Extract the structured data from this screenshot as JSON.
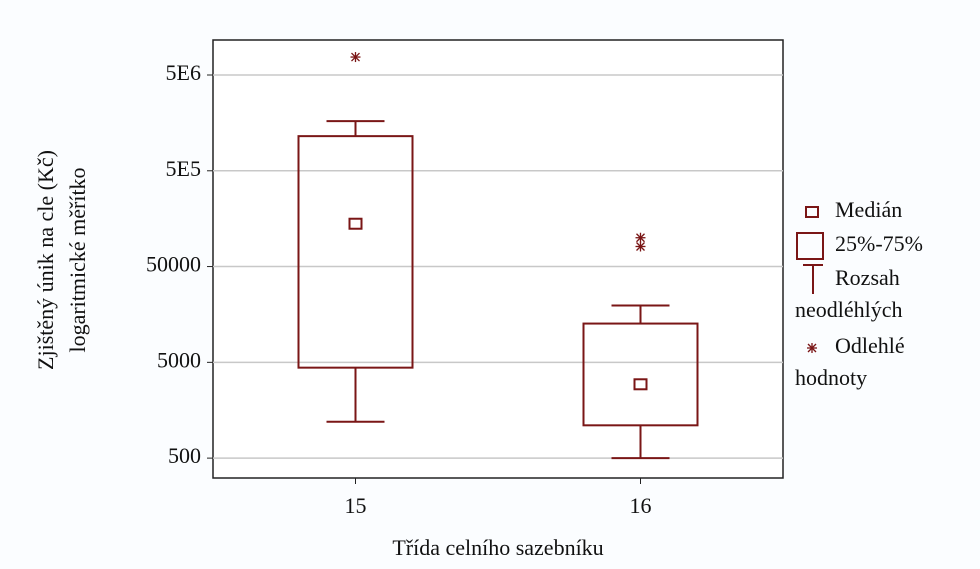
{
  "chart_data": {
    "type": "box",
    "ylabel": [
      "Zjištěný únik na cle (Kč)",
      "logaritmické měřítko"
    ],
    "xlabel": "Třída celního sazebníku",
    "categories": [
      "15",
      "16"
    ],
    "color": "#7a1616",
    "log_scale": true,
    "grid": true,
    "ylim": [
      310,
      11600000
    ],
    "yticks": [
      {
        "value": 5000000,
        "label": "5E6"
      },
      {
        "value": 500000,
        "label": "5E5"
      },
      50000,
      5000,
      500
    ],
    "boxes": [
      {
        "whisker_low": 1200,
        "q1": 4400,
        "median": 140000,
        "q3": 1150000,
        "whisker_high": 1650000,
        "outliers": [
          7700000
        ]
      },
      {
        "whisker_low": 500,
        "q1": 1100,
        "median": 2950,
        "q3": 12700,
        "whisker_high": 19600,
        "outliers": [
          100000,
          81000
        ]
      }
    ],
    "legend": {
      "position": "right",
      "items": [
        {
          "symbol": "median",
          "lines": [
            "Medián"
          ]
        },
        {
          "symbol": "box",
          "lines": [
            "25%-75%"
          ]
        },
        {
          "symbol": "whisker",
          "lines": [
            "Rozsah",
            "neodléhlých"
          ]
        },
        {
          "symbol": "outlier",
          "lines": [
            "Odlehlé",
            "hodnoty"
          ]
        }
      ]
    }
  }
}
